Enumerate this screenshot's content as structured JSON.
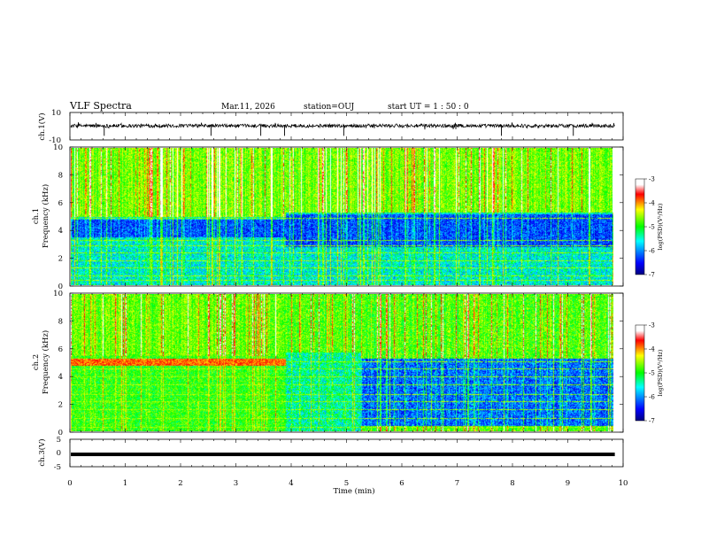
{
  "header": {
    "title": "VLF Spectra",
    "date": "Mar.11, 2026",
    "station": "station=OUJ",
    "start": "start  UT =   1 : 50 : 0"
  },
  "chart_data": [
    {
      "type": "line",
      "name": "ch1-waveform",
      "ylabel": "ch.1(V)",
      "ylim": [
        -10,
        10
      ],
      "yticks": [
        "10",
        "-10"
      ],
      "baseline": 0.3,
      "spike_minutes": [
        0.62,
        2.55,
        3.45,
        3.88,
        4.95,
        7.8,
        9.1
      ]
    },
    {
      "type": "heatmap",
      "name": "ch1-spectrogram",
      "ylabel": "ch.1\nFrequency  (kHz)",
      "ylim": [
        0,
        10
      ],
      "yticks": [
        "0",
        "2",
        "4",
        "6",
        "8",
        "10"
      ],
      "xlim": [
        0,
        10
      ],
      "data_end_min": 9.85,
      "segments": [
        {
          "t0": 0,
          "t1": 3.9,
          "lower_edge_khz": 5.0,
          "quiet_band_khz": [
            3.5,
            4.8
          ]
        },
        {
          "t0": 3.9,
          "t1": 9.85,
          "lower_edge_khz": 5.3,
          "quiet_band_khz": [
            2.8,
            5.2
          ]
        }
      ],
      "lines_khz": [
        0.4,
        0.7,
        1.3,
        1.8,
        2.4,
        2.9,
        3.3,
        4.9
      ],
      "colorbar": {
        "label": "log(PSD)(V²/Hz)",
        "ticks": [
          "-3",
          "-4",
          "-5",
          "-6",
          "-7"
        ],
        "range": [
          -7,
          -3
        ]
      }
    },
    {
      "type": "heatmap",
      "name": "ch2-spectrogram",
      "ylabel": "ch.2\nFrequency  (kHz)",
      "ylim": [
        0,
        10
      ],
      "yticks": [
        "0",
        "2",
        "4",
        "6",
        "8",
        "10"
      ],
      "xlim": [
        0,
        10
      ],
      "data_end_min": 9.85,
      "segments": [
        {
          "t0": 0,
          "t1": 3.9,
          "hot_band_khz": [
            4.8,
            5.3
          ]
        },
        {
          "t0": 3.9,
          "t1": 5.25,
          "noise_level": "medium"
        },
        {
          "t0": 5.25,
          "t1": 9.85,
          "dark_band_khz": [
            0.4,
            5.3
          ]
        }
      ],
      "lines_khz": [
        0.3,
        1.0,
        1.6,
        2.2,
        2.7,
        3.4,
        4.0,
        4.6,
        5.1
      ],
      "colorbar": {
        "label": "log(PSD)(V²/Hz)",
        "ticks": [
          "-3",
          "-4",
          "-5",
          "-6",
          "-7"
        ],
        "range": [
          -7,
          -3
        ]
      }
    },
    {
      "type": "line",
      "name": "ch3-waveform",
      "ylabel": "ch.3(V)",
      "ylim": [
        -5,
        5
      ],
      "yticks": [
        "5",
        "0",
        "-5"
      ],
      "value": -0.5,
      "xlabel": "Time  (min)",
      "xticks": [
        "0",
        "1",
        "2",
        "3",
        "4",
        "5",
        "6",
        "7",
        "8",
        "9",
        "10"
      ]
    }
  ]
}
